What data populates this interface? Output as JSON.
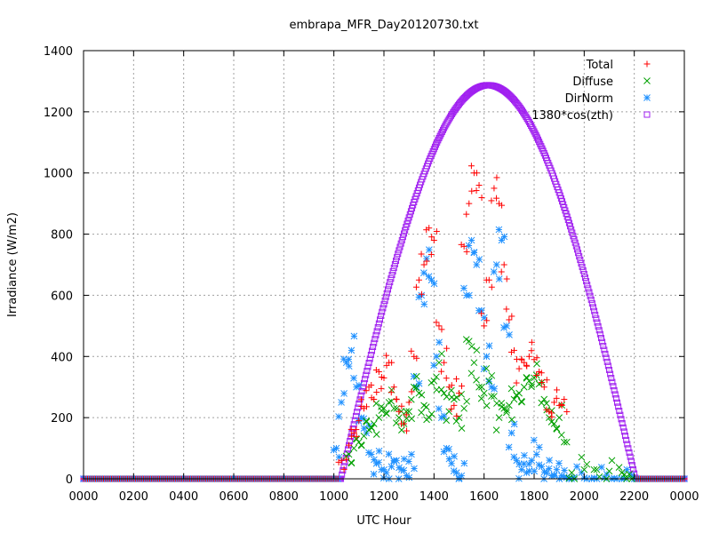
{
  "chart_data": {
    "type": "scatter",
    "title": "embrapa_MFR_Day20120730.txt",
    "xlabel": "UTC Hour",
    "ylabel": "Irradiance (W/m2)",
    "xlim": [
      0,
      2400
    ],
    "ylim": [
      0,
      1400
    ],
    "x_ticks": [
      "0000",
      "0200",
      "0400",
      "0600",
      "0800",
      "1000",
      "1200",
      "1400",
      "1600",
      "1800",
      "2000",
      "2200",
      "0000"
    ],
    "y_ticks": [
      "0",
      "200",
      "400",
      "600",
      "800",
      "1000",
      "1200",
      "1400"
    ],
    "grid": true,
    "legend_position": "top-right",
    "series": [
      {
        "name": "Total",
        "marker": "plus",
        "color": "#ff0000",
        "x": [
          1030,
          1060,
          1080,
          1100,
          1120,
          1140,
          1160,
          1180,
          1200,
          1220,
          1240,
          1260,
          1280,
          1300,
          1320,
          1340,
          1360,
          1380,
          1400,
          1420,
          1440,
          1460,
          1480,
          1500,
          1520,
          1540,
          1560,
          1580,
          1600,
          1620,
          1640,
          1660,
          1680,
          1700,
          1720,
          1740,
          1760,
          1780,
          1800,
          1820,
          1840,
          1860,
          1880,
          1900,
          1920
        ],
        "y": [
          60,
          110,
          150,
          190,
          230,
          300,
          260,
          350,
          330,
          380,
          300,
          220,
          180,
          250,
          400,
          650,
          700,
          820,
          780,
          500,
          380,
          300,
          240,
          280,
          760,
          900,
          1000,
          960,
          500,
          650,
          950,
          900,
          700,
          520,
          420,
          360,
          380,
          400,
          390,
          350,
          300,
          220,
          250,
          240,
          260
        ]
      },
      {
        "name": "Diffuse",
        "marker": "cross",
        "color": "#00a000",
        "x": [
          1060,
          1080,
          1100,
          1120,
          1140,
          1160,
          1180,
          1200,
          1220,
          1240,
          1260,
          1280,
          1300,
          1320,
          1340,
          1360,
          1380,
          1400,
          1420,
          1440,
          1460,
          1480,
          1500,
          1520,
          1540,
          1560,
          1580,
          1600,
          1620,
          1640,
          1660,
          1680,
          1700,
          1720,
          1740,
          1760,
          1780,
          1800,
          1820,
          1840,
          1860,
          1880,
          1900,
          1920,
          1950,
          2000,
          2050,
          2100,
          2150,
          2180
        ],
        "y": [
          80,
          100,
          120,
          140,
          160,
          180,
          200,
          230,
          250,
          230,
          200,
          180,
          220,
          300,
          280,
          240,
          200,
          320,
          380,
          280,
          220,
          260,
          200,
          230,
          450,
          380,
          300,
          280,
          320,
          270,
          200,
          230,
          240,
          260,
          280,
          300,
          320,
          330,
          310,
          260,
          200,
          180,
          200,
          120,
          20,
          30,
          30,
          25,
          20,
          15
        ]
      },
      {
        "name": "DirNorm",
        "marker": "star",
        "color": "#1e90ff",
        "x": [
          1010,
          1030,
          1050,
          1070,
          1090,
          1110,
          1130,
          1150,
          1170,
          1190,
          1210,
          1230,
          1250,
          1270,
          1290,
          1310,
          1330,
          1350,
          1370,
          1390,
          1410,
          1430,
          1450,
          1470,
          1490,
          1510,
          1530,
          1550,
          1570,
          1590,
          1610,
          1630,
          1650,
          1670,
          1690,
          1710,
          1730,
          1750,
          1770,
          1790,
          1810,
          1830,
          1850,
          1870,
          1890,
          1910,
          1930,
          1960,
          2000,
          2040,
          2080,
          2120,
          2160,
          2200
        ],
        "y": [
          100,
          250,
          380,
          420,
          300,
          200,
          150,
          80,
          50,
          30,
          20,
          40,
          60,
          30,
          10,
          80,
          300,
          600,
          720,
          650,
          400,
          200,
          100,
          50,
          20,
          10,
          600,
          780,
          700,
          550,
          400,
          300,
          700,
          780,
          500,
          150,
          60,
          30,
          20,
          60,
          80,
          40,
          20,
          10,
          30,
          10,
          5,
          5,
          3,
          3,
          3,
          2,
          1,
          0
        ]
      },
      {
        "name": "1380*cos(zth)",
        "marker": "square",
        "color": "#a020f0",
        "peak_x": 1618,
        "peak_y": 1287,
        "zero_from_x": 1028,
        "zero_to_x": 2205
      }
    ]
  }
}
